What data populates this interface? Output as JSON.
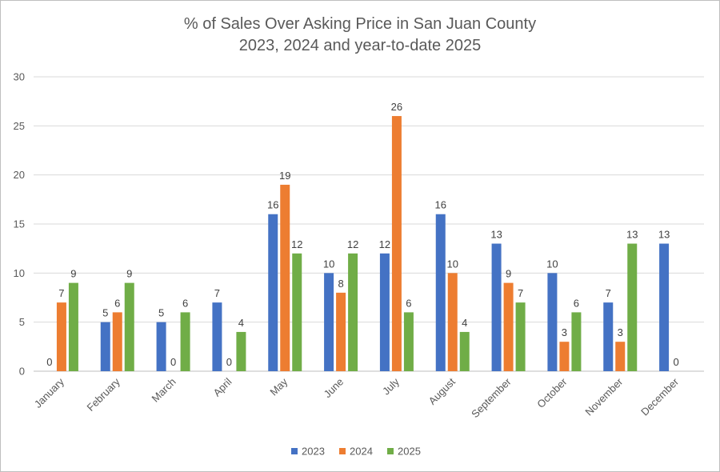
{
  "chart_data": {
    "type": "bar",
    "title_line1": "% of Sales Over Asking Price in San Juan County",
    "title_line2": "2023, 2024 and year-to-date 2025",
    "xlabel": "",
    "ylabel": "",
    "ylim": [
      0,
      30
    ],
    "yticks": [
      0,
      5,
      10,
      15,
      20,
      25,
      30
    ],
    "grid": true,
    "legend_position": "bottom",
    "categories": [
      "January",
      "February",
      "March",
      "April",
      "May",
      "June",
      "July",
      "August",
      "September",
      "October",
      "November",
      "December"
    ],
    "series": [
      {
        "name": "2023",
        "color": "#4472C4",
        "values": [
          0,
          5,
          5,
          7,
          16,
          10,
          12,
          16,
          13,
          10,
          7,
          13
        ]
      },
      {
        "name": "2024",
        "color": "#ED7D31",
        "values": [
          7,
          6,
          0,
          0,
          19,
          8,
          26,
          10,
          9,
          3,
          3,
          0
        ]
      },
      {
        "name": "2025",
        "color": "#70AD47",
        "values": [
          9,
          9,
          6,
          4,
          12,
          12,
          6,
          4,
          7,
          6,
          13,
          null
        ]
      }
    ]
  }
}
